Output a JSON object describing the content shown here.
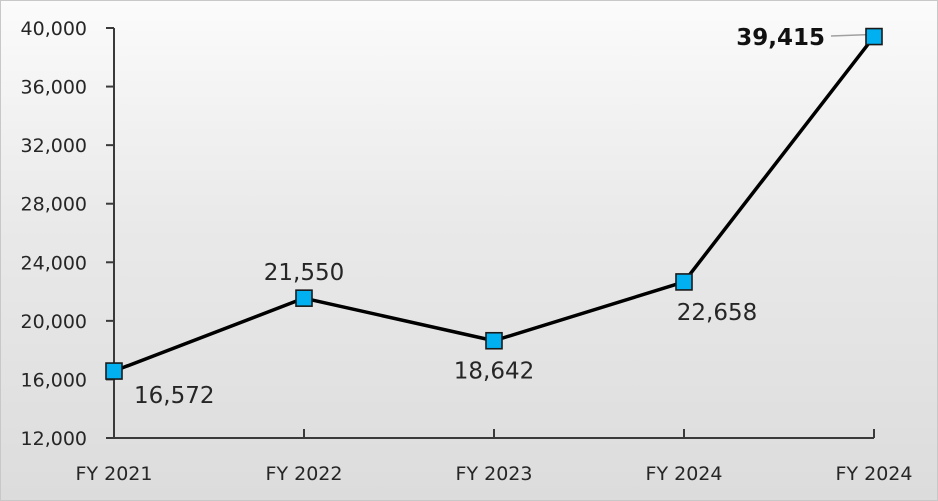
{
  "chart_data": {
    "type": "line",
    "title": "",
    "xlabel": "",
    "ylabel": "",
    "categories": [
      "FY 2021",
      "FY 2022",
      "FY 2023",
      "FY 2024",
      "FY 2024"
    ],
    "series": [
      {
        "name": "Series 1",
        "values": [
          16572,
          21550,
          18642,
          22658,
          39415
        ],
        "labels": [
          "16,572",
          "21,550",
          "18,642",
          "22,658",
          "39,415"
        ],
        "color": "#000000",
        "marker": "square",
        "marker_fill": "#00B0F0",
        "marker_stroke": "#1a1a1a"
      }
    ],
    "ylim": [
      12000,
      40000
    ],
    "yticks": [
      12000,
      16000,
      20000,
      24000,
      28000,
      32000,
      36000,
      40000
    ],
    "ytick_labels": [
      "12,000",
      "16,000",
      "20,000",
      "24,000",
      "28,000",
      "32,000",
      "36,000",
      "40,000"
    ],
    "grid": false,
    "legend": null,
    "annotations": [
      {
        "target_index": 4,
        "text": "39,415",
        "bold": true,
        "leader_line": true
      }
    ]
  }
}
